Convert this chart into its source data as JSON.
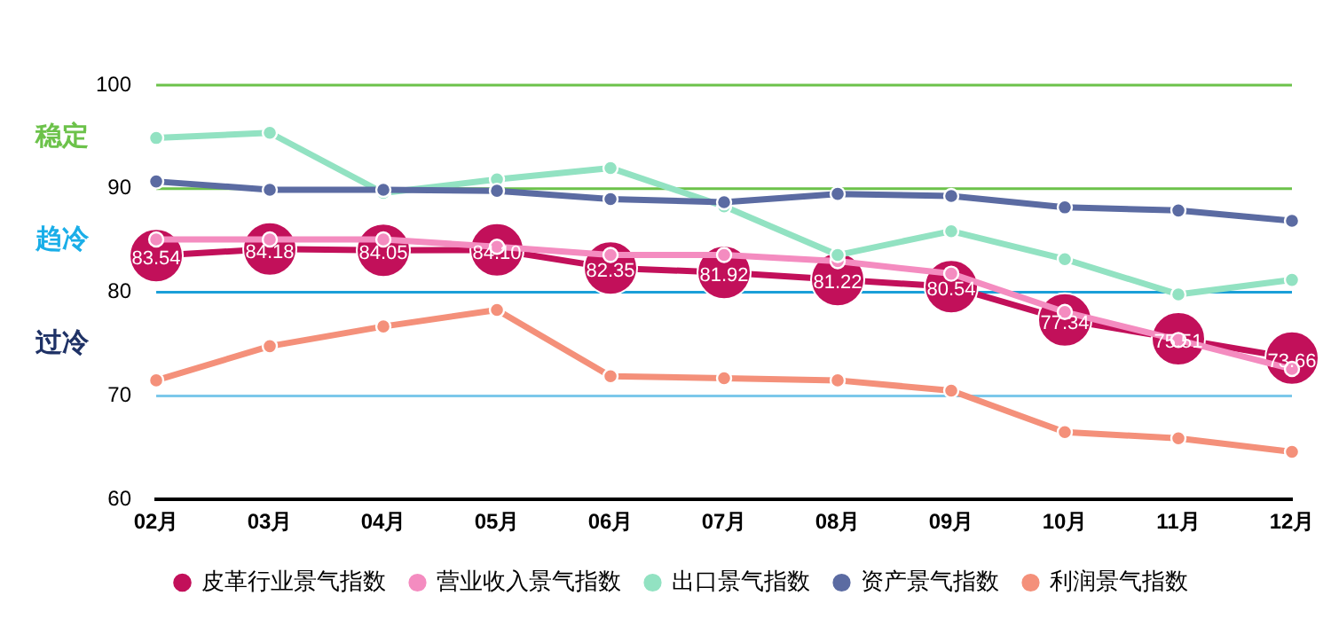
{
  "chart_data": {
    "type": "line",
    "categories": [
      "02月",
      "03月",
      "04月",
      "05月",
      "06月",
      "07月",
      "08月",
      "09月",
      "10月",
      "11月",
      "12月"
    ],
    "series": [
      {
        "name": "皮革行业景气指数",
        "color": "#c2105a",
        "values": [
          83.54,
          84.18,
          84.05,
          84.1,
          82.35,
          81.92,
          81.22,
          80.54,
          77.34,
          75.51,
          73.66
        ],
        "value_labels": [
          "83.54",
          "84.18",
          "84.05",
          "84.10",
          "82.35",
          "81.92",
          "81.22",
          "80.54",
          "77.34",
          "75.51",
          "73.66"
        ]
      },
      {
        "name": "营业收入景气指数",
        "color": "#f48cc0",
        "values": [
          85.1,
          85.1,
          85.1,
          84.4,
          83.6,
          83.6,
          83.0,
          81.8,
          78.1,
          75.4,
          72.6
        ]
      },
      {
        "name": "出口景气指数",
        "color": "#92e2c2",
        "values": [
          94.9,
          95.4,
          89.6,
          90.9,
          92.0,
          88.3,
          83.6,
          85.9,
          83.2,
          79.8,
          81.2
        ]
      },
      {
        "name": "资产景气指数",
        "color": "#5b6ba2",
        "values": [
          90.7,
          89.9,
          89.9,
          89.8,
          89.0,
          88.7,
          89.5,
          89.3,
          88.2,
          87.9,
          86.9
        ]
      },
      {
        "name": "利润景气指数",
        "color": "#f4907a",
        "values": [
          71.5,
          74.8,
          76.7,
          78.3,
          71.9,
          71.7,
          71.5,
          70.5,
          66.5,
          65.9,
          64.6
        ]
      }
    ],
    "ylim": [
      60,
      100
    ],
    "yticks": [
      60,
      70,
      80,
      90,
      100
    ],
    "grid": false,
    "legend": "bottom",
    "marker": "circle",
    "line_style": "solid",
    "ref_lines": [
      {
        "axis": "y",
        "value": 100,
        "color": "#6cc24a"
      },
      {
        "axis": "y",
        "value": 90,
        "color": "#6cc24a"
      },
      {
        "axis": "y",
        "value": 80,
        "color": "#1a9fd8"
      },
      {
        "axis": "y",
        "value": 70,
        "color": "#7cc8ea"
      }
    ],
    "annotations": [
      "稳定",
      "趋冷",
      "过冷"
    ]
  }
}
